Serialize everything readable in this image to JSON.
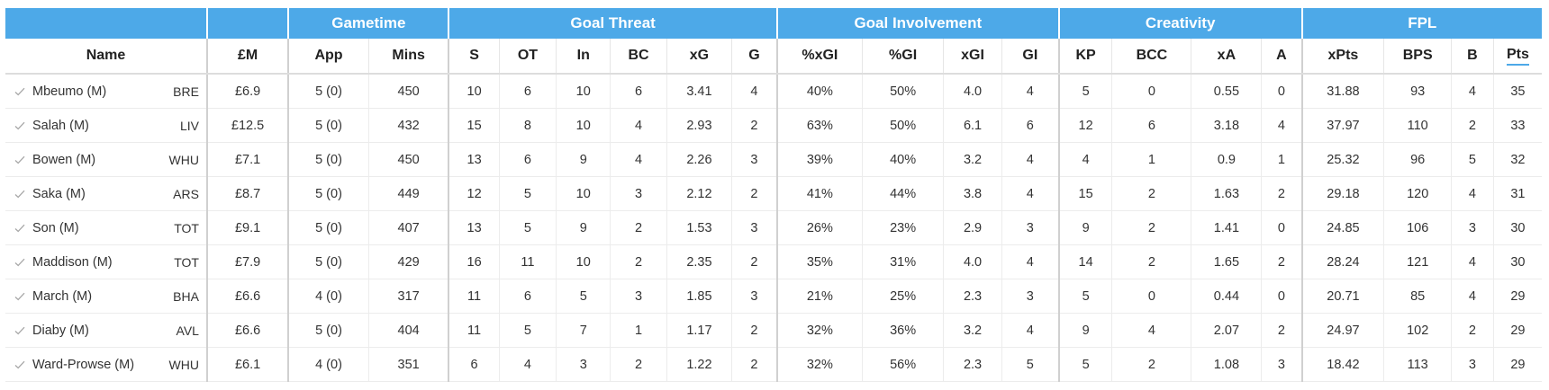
{
  "group_headers": [
    {
      "label": "",
      "span": 1
    },
    {
      "label": "",
      "span": 1
    },
    {
      "label": "Gametime",
      "span": 2
    },
    {
      "label": "Goal Threat",
      "span": 6
    },
    {
      "label": "Goal Involvement",
      "span": 4
    },
    {
      "label": "Creativity",
      "span": 4
    },
    {
      "label": "FPL",
      "span": 4
    }
  ],
  "columns": [
    "Name",
    "£M",
    "App",
    "Mins",
    "S",
    "OT",
    "In",
    "BC",
    "xG",
    "G",
    "%xGI",
    "%GI",
    "xGI",
    "GI",
    "KP",
    "BCC",
    "xA",
    "A",
    "xPts",
    "BPS",
    "B",
    "Pts"
  ],
  "sorted_column": "Pts",
  "rows": [
    {
      "name": "Mbeumo (M)",
      "team": "BRE",
      "vals": [
        "£6.9",
        "5 (0)",
        "450",
        "10",
        "6",
        "10",
        "6",
        "3.41",
        "4",
        "40%",
        "50%",
        "4.0",
        "4",
        "5",
        "0",
        "0.55",
        "0",
        "31.88",
        "93",
        "4",
        "35"
      ]
    },
    {
      "name": "Salah (M)",
      "team": "LIV",
      "vals": [
        "£12.5",
        "5 (0)",
        "432",
        "15",
        "8",
        "10",
        "4",
        "2.93",
        "2",
        "63%",
        "50%",
        "6.1",
        "6",
        "12",
        "6",
        "3.18",
        "4",
        "37.97",
        "110",
        "2",
        "33"
      ]
    },
    {
      "name": "Bowen (M)",
      "team": "WHU",
      "vals": [
        "£7.1",
        "5 (0)",
        "450",
        "13",
        "6",
        "9",
        "4",
        "2.26",
        "3",
        "39%",
        "40%",
        "3.2",
        "4",
        "4",
        "1",
        "0.9",
        "1",
        "25.32",
        "96",
        "5",
        "32"
      ]
    },
    {
      "name": "Saka (M)",
      "team": "ARS",
      "vals": [
        "£8.7",
        "5 (0)",
        "449",
        "12",
        "5",
        "10",
        "3",
        "2.12",
        "2",
        "41%",
        "44%",
        "3.8",
        "4",
        "15",
        "2",
        "1.63",
        "2",
        "29.18",
        "120",
        "4",
        "31"
      ]
    },
    {
      "name": "Son (M)",
      "team": "TOT",
      "vals": [
        "£9.1",
        "5 (0)",
        "407",
        "13",
        "5",
        "9",
        "2",
        "1.53",
        "3",
        "26%",
        "23%",
        "2.9",
        "3",
        "9",
        "2",
        "1.41",
        "0",
        "24.85",
        "106",
        "3",
        "30"
      ]
    },
    {
      "name": "Maddison (M)",
      "team": "TOT",
      "vals": [
        "£7.9",
        "5 (0)",
        "429",
        "16",
        "11",
        "10",
        "2",
        "2.35",
        "2",
        "35%",
        "31%",
        "4.0",
        "4",
        "14",
        "2",
        "1.65",
        "2",
        "28.24",
        "121",
        "4",
        "30"
      ]
    },
    {
      "name": "March (M)",
      "team": "BHA",
      "vals": [
        "£6.6",
        "4 (0)",
        "317",
        "11",
        "6",
        "5",
        "3",
        "1.85",
        "3",
        "21%",
        "25%",
        "2.3",
        "3",
        "5",
        "0",
        "0.44",
        "0",
        "20.71",
        "85",
        "4",
        "29"
      ]
    },
    {
      "name": "Diaby (M)",
      "team": "AVL",
      "vals": [
        "£6.6",
        "5 (0)",
        "404",
        "11",
        "5",
        "7",
        "1",
        "1.17",
        "2",
        "32%",
        "36%",
        "3.2",
        "4",
        "9",
        "4",
        "2.07",
        "2",
        "24.97",
        "102",
        "2",
        "29"
      ]
    },
    {
      "name": "Ward-Prowse (M)",
      "team": "WHU",
      "vals": [
        "£6.1",
        "4 (0)",
        "351",
        "6",
        "4",
        "3",
        "2",
        "1.22",
        "2",
        "32%",
        "56%",
        "2.3",
        "5",
        "5",
        "2",
        "1.08",
        "3",
        "18.42",
        "113",
        "3",
        "29"
      ]
    }
  ],
  "colors": {
    "header_bg": "#4da9e8",
    "header_text": "#ffffff",
    "check": "#a8a8a8",
    "sort_underline": "#4da9e8"
  },
  "icons": {
    "row_marker": "check-icon"
  }
}
